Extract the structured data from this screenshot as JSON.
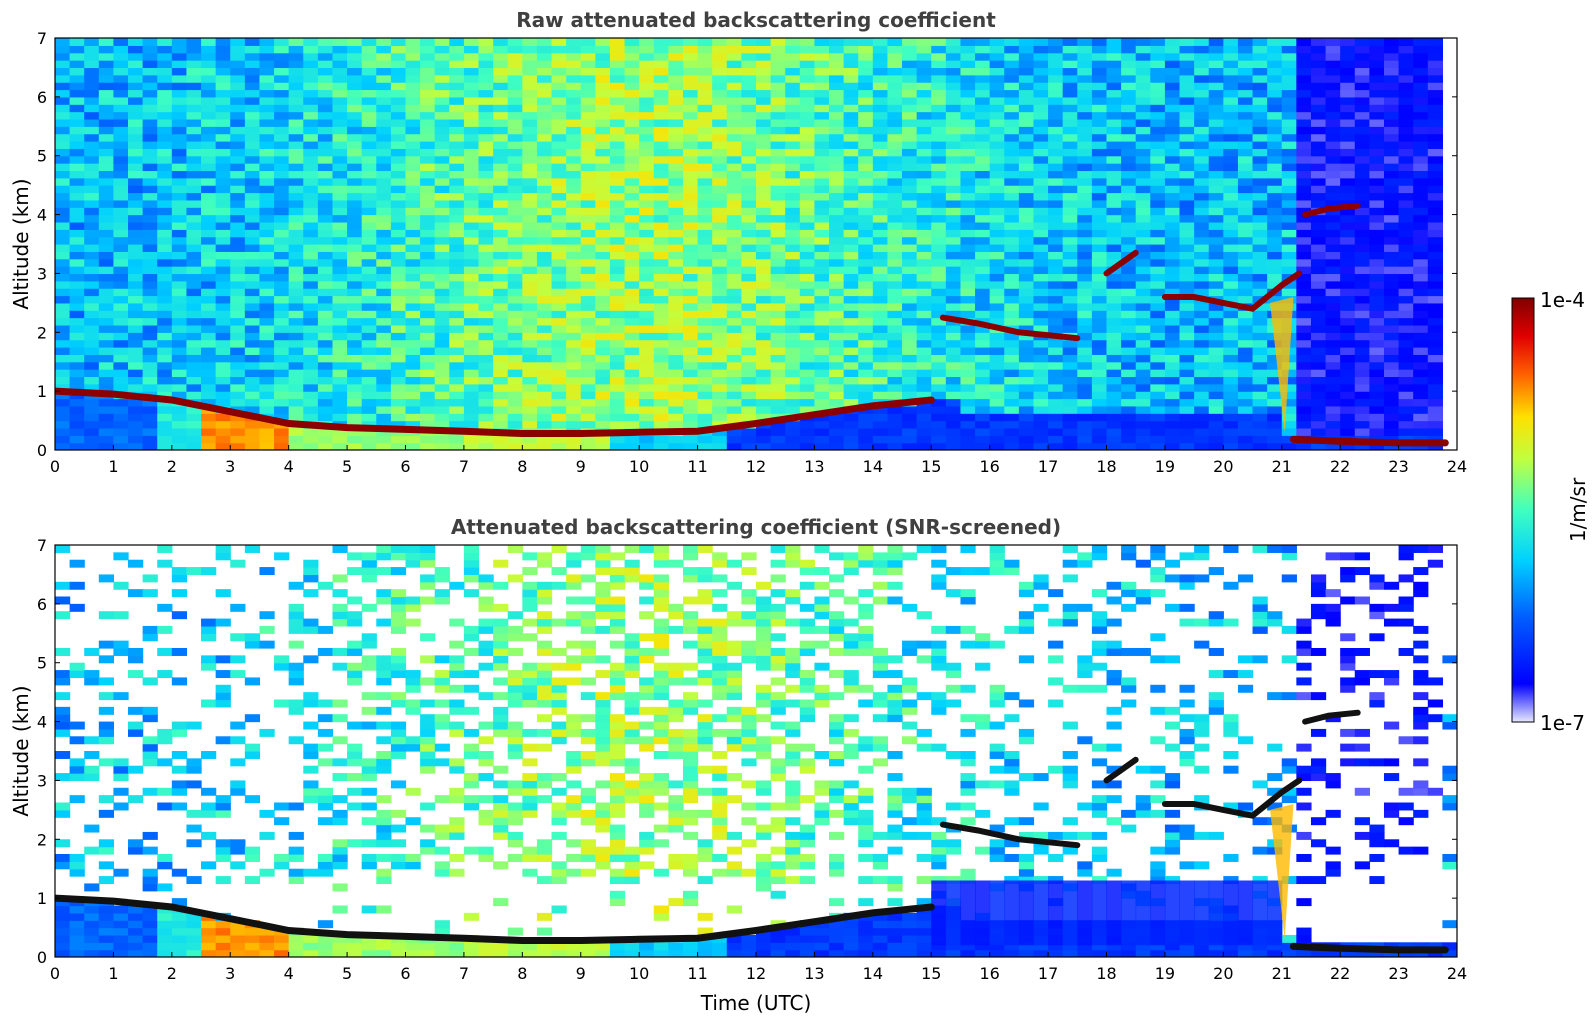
{
  "chart_data": [
    {
      "type": "heatmap",
      "title": "Raw attenuated backscattering coefficient",
      "xlabel": "",
      "ylabel": "Altitude (km)",
      "xlim": [
        0,
        24
      ],
      "ylim": [
        0,
        7
      ],
      "x_ticks": [
        "0",
        "1",
        "2",
        "3",
        "4",
        "5",
        "6",
        "7",
        "8",
        "9",
        "10",
        "11",
        "12",
        "13",
        "14",
        "15",
        "16",
        "17",
        "18",
        "19",
        "20",
        "21",
        "22",
        "23",
        "24"
      ],
      "y_ticks": [
        "0",
        "1",
        "2",
        "3",
        "4",
        "5",
        "6",
        "7"
      ],
      "features": {
        "boundary_layer_top_km": [
          [
            0,
            1.0
          ],
          [
            1,
            0.95
          ],
          [
            2,
            0.85
          ],
          [
            3,
            0.65
          ],
          [
            4,
            0.45
          ],
          [
            5,
            0.38
          ],
          [
            6,
            0.35
          ],
          [
            7,
            0.32
          ],
          [
            8,
            0.28
          ],
          [
            9,
            0.28
          ],
          [
            10,
            0.3
          ],
          [
            11,
            0.32
          ],
          [
            12,
            0.45
          ],
          [
            13,
            0.6
          ],
          [
            14,
            0.75
          ],
          [
            15,
            0.85
          ]
        ],
        "low_cloud_km": [
          [
            21.2,
            0.18
          ],
          [
            22,
            0.15
          ],
          [
            23,
            0.12
          ],
          [
            23.8,
            0.12
          ]
        ],
        "mid_clouds_km": [
          [
            15.2,
            2.25
          ],
          [
            15.8,
            2.15
          ],
          [
            16.5,
            2.0
          ],
          [
            17.0,
            1.95
          ],
          [
            17.5,
            1.9
          ],
          [
            18.0,
            3.0
          ],
          [
            18.5,
            3.35
          ],
          [
            19.0,
            2.6
          ],
          [
            19.5,
            2.6
          ],
          [
            20.0,
            2.5
          ],
          [
            20.5,
            2.4
          ],
          [
            21.0,
            2.8
          ],
          [
            21.3,
            3.0
          ]
        ],
        "high_cloud_km": [
          [
            21.4,
            4.0
          ],
          [
            21.8,
            4.1
          ],
          [
            22.3,
            4.15
          ]
        ]
      }
    },
    {
      "type": "heatmap",
      "title": "Attenuated backscattering coefficient (SNR-screened)",
      "xlabel": "Time (UTC)",
      "ylabel": "Altitude (km)",
      "xlim": [
        0,
        24
      ],
      "ylim": [
        0,
        7
      ],
      "x_ticks": [
        "0",
        "1",
        "2",
        "3",
        "4",
        "5",
        "6",
        "7",
        "8",
        "9",
        "10",
        "11",
        "12",
        "13",
        "14",
        "15",
        "16",
        "17",
        "18",
        "19",
        "20",
        "21",
        "22",
        "23",
        "24"
      ],
      "y_ticks": [
        "0",
        "1",
        "2",
        "3",
        "4",
        "5",
        "6",
        "7"
      ]
    }
  ],
  "colorbar": {
    "label": "1/m/sr",
    "max_label": "1e-4",
    "min_label": "1e-7",
    "scale": "log",
    "colormap": "jet"
  },
  "colors": {
    "background": "#ffffff",
    "cloud": "#8b0000",
    "screened_cloud": "#111111"
  }
}
